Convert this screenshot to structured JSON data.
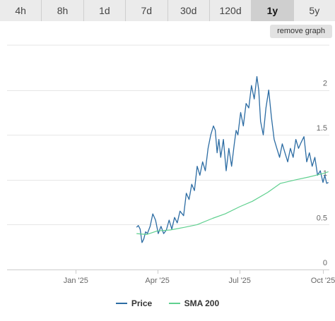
{
  "tabs": [
    {
      "label": "4h",
      "active": false
    },
    {
      "label": "8h",
      "active": false
    },
    {
      "label": "1d",
      "active": false
    },
    {
      "label": "7d",
      "active": false
    },
    {
      "label": "30d",
      "active": false
    },
    {
      "label": "120d",
      "active": false
    },
    {
      "label": "1y",
      "active": true
    },
    {
      "label": "5y",
      "active": false
    }
  ],
  "remove_graph_label": "remove graph",
  "colors": {
    "price": "#2c6ca3",
    "sma": "#5fd08f",
    "grid": "#e6e6e6",
    "axis": "#cccccc"
  },
  "chart_data": {
    "type": "line",
    "x_ticks": [
      "Jan '25",
      "Apr '25",
      "Jul '25",
      "Oct '25"
    ],
    "x_tick_dates": [
      "2025-01-01",
      "2025-04-01",
      "2025-07-01",
      "2025-10-01"
    ],
    "y_ticks": [
      "0",
      "0.5",
      "1",
      "1.5",
      "2"
    ],
    "y_tick_values": [
      0,
      0.5,
      1,
      1.5,
      2
    ],
    "xlim": [
      "2024-10-17",
      "2025-10-08"
    ],
    "ylim": [
      0,
      2.5
    ],
    "grid": true,
    "legend_position": "bottom-center",
    "series": [
      {
        "name": "Price",
        "x": [
          "2025-03-09",
          "2025-03-11",
          "2025-03-13",
          "2025-03-15",
          "2025-03-17",
          "2025-03-19",
          "2025-03-21",
          "2025-03-24",
          "2025-03-27",
          "2025-03-30",
          "2025-04-02",
          "2025-04-05",
          "2025-04-08",
          "2025-04-11",
          "2025-04-14",
          "2025-04-17",
          "2025-04-20",
          "2025-04-23",
          "2025-04-26",
          "2025-04-30",
          "2025-05-03",
          "2025-05-06",
          "2025-05-09",
          "2025-05-12",
          "2025-05-15",
          "2025-05-18",
          "2025-05-21",
          "2025-05-24",
          "2025-05-27",
          "2025-05-30",
          "2025-06-02",
          "2025-06-04",
          "2025-06-06",
          "2025-06-08",
          "2025-06-10",
          "2025-06-13",
          "2025-06-16",
          "2025-06-19",
          "2025-06-22",
          "2025-06-25",
          "2025-06-27",
          "2025-06-29",
          "2025-07-02",
          "2025-07-05",
          "2025-07-08",
          "2025-07-11",
          "2025-07-14",
          "2025-07-17",
          "2025-07-20",
          "2025-07-22",
          "2025-07-24",
          "2025-07-27",
          "2025-07-30",
          "2025-08-02",
          "2025-08-05",
          "2025-08-08",
          "2025-08-11",
          "2025-08-14",
          "2025-08-17",
          "2025-08-20",
          "2025-08-23",
          "2025-08-26",
          "2025-08-29",
          "2025-09-01",
          "2025-09-04",
          "2025-09-07",
          "2025-09-10",
          "2025-09-13",
          "2025-09-16",
          "2025-09-19",
          "2025-09-22",
          "2025-09-25",
          "2025-09-28",
          "2025-10-01",
          "2025-10-03",
          "2025-10-05",
          "2025-10-07"
        ],
        "y": [
          0.47,
          0.49,
          0.45,
          0.3,
          0.34,
          0.42,
          0.4,
          0.48,
          0.62,
          0.55,
          0.4,
          0.48,
          0.4,
          0.44,
          0.55,
          0.45,
          0.58,
          0.52,
          0.65,
          0.6,
          0.85,
          0.78,
          0.95,
          0.88,
          1.15,
          1.05,
          1.2,
          1.1,
          1.35,
          1.5,
          1.6,
          1.55,
          1.3,
          1.45,
          1.25,
          1.45,
          1.1,
          1.35,
          1.15,
          1.4,
          1.55,
          1.5,
          1.75,
          1.6,
          1.85,
          1.8,
          2.05,
          1.9,
          2.15,
          2.0,
          1.65,
          1.5,
          1.8,
          2.0,
          1.7,
          1.45,
          1.35,
          1.25,
          1.4,
          1.3,
          1.2,
          1.35,
          1.25,
          1.45,
          1.35,
          1.42,
          1.48,
          1.2,
          1.3,
          1.15,
          1.25,
          1.05,
          1.1,
          0.97,
          1.05,
          0.96,
          0.97
        ]
      },
      {
        "name": "SMA 200",
        "x": [
          "2025-03-09",
          "2025-03-20",
          "2025-04-01",
          "2025-04-15",
          "2025-05-01",
          "2025-05-15",
          "2025-06-01",
          "2025-06-15",
          "2025-07-01",
          "2025-07-15",
          "2025-08-01",
          "2025-08-15",
          "2025-09-01",
          "2025-09-15",
          "2025-10-01",
          "2025-10-07"
        ],
        "y": [
          0.4,
          0.39,
          0.43,
          0.44,
          0.47,
          0.5,
          0.57,
          0.62,
          0.7,
          0.76,
          0.86,
          0.96,
          1.0,
          1.03,
          1.07,
          1.09
        ]
      }
    ]
  }
}
